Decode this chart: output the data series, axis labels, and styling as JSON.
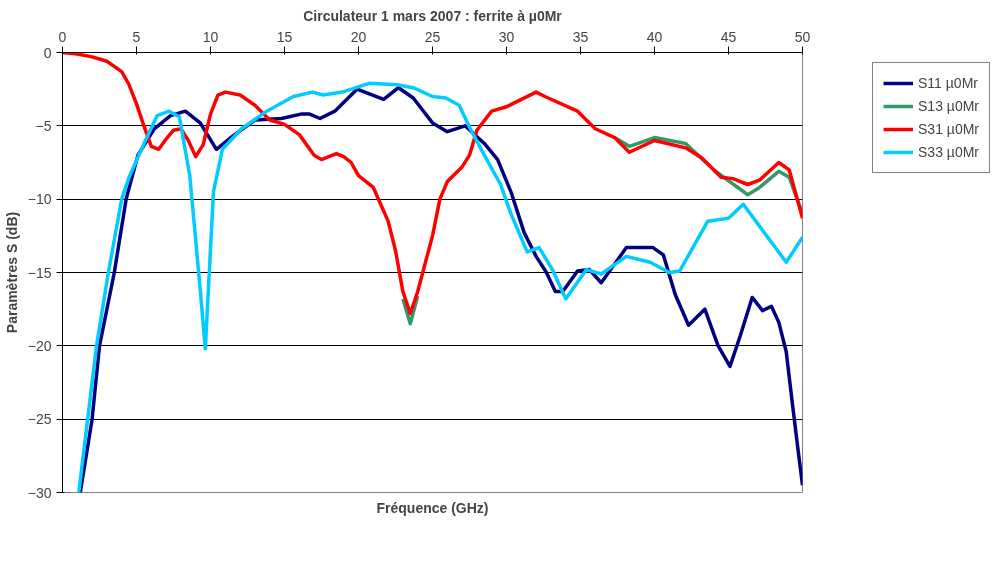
{
  "chart_data": {
    "type": "line",
    "title": "Circulateur 1 mars 2007 : ferrite à µ0Mr",
    "xlabel": "Fréquence (GHz)",
    "ylabel": "Paramètres S (dB)",
    "xlim": [
      0,
      50
    ],
    "ylim": [
      -30,
      0
    ],
    "xticks": [
      0,
      5,
      10,
      15,
      20,
      25,
      30,
      35,
      40,
      45,
      50
    ],
    "yticks": [
      -30,
      -25,
      -20,
      -15,
      -10,
      -5,
      0
    ],
    "grid": "y",
    "legend": "right",
    "marker": "none",
    "line_style": "solid",
    "series": [
      {
        "name": "S11 µ0Mr",
        "color": "#000080",
        "x": [
          1.2,
          2.0,
          2.5,
          3.5,
          4.3,
          5.1,
          6.2,
          7.3,
          8.3,
          9.3,
          10.4,
          11.5,
          13.0,
          14.8,
          16.1,
          16.7,
          17.4,
          18.4,
          19.9,
          21.7,
          22.7,
          23.7,
          25.0,
          26.0,
          27.2,
          28.5,
          29.4,
          30.3,
          31.2,
          32.0,
          32.7,
          33.3,
          33.8,
          34.8,
          35.6,
          36.4,
          38.1,
          39.9,
          40.6,
          41.4,
          42.3,
          43.4,
          44.3,
          45.1,
          45.8,
          46.6,
          47.3,
          47.9,
          48.4,
          48.9,
          49.3,
          49.7,
          50.0
        ],
        "values": [
          -30,
          -25,
          -20,
          -15,
          -10,
          -7,
          -5.2,
          -4.3,
          -4.0,
          -4.8,
          -6.6,
          -5.7,
          -4.6,
          -4.5,
          -4.2,
          -4.2,
          -4.5,
          -4.0,
          -2.5,
          -3.2,
          -2.4,
          -3.1,
          -4.8,
          -5.4,
          -5.0,
          -6.2,
          -7.3,
          -9.5,
          -12.3,
          -13.9,
          -15.0,
          -16.3,
          -16.3,
          -14.9,
          -14.8,
          -15.7,
          -13.3,
          -13.3,
          -13.8,
          -16.5,
          -18.6,
          -17.5,
          -20.0,
          -21.4,
          -19.3,
          -16.7,
          -17.6,
          -17.3,
          -18.4,
          -20.4,
          -23.8,
          -27.1,
          -29.5
        ]
      },
      {
        "name": "S13 µ0Mr",
        "color": "#339966",
        "x": [
          23,
          23.5,
          24,
          30,
          37.3,
          38.3,
          40.0,
          42.1,
          44.0,
          46.3,
          47.1,
          48.4,
          49.1,
          50
        ],
        "values": [
          -16.8,
          -18.5,
          -16.6,
          null,
          -5.8,
          -6.4,
          -5.8,
          -6.2,
          -8.0,
          -9.7,
          -9.2,
          -8.1,
          -8.5,
          -11.0
        ]
      },
      {
        "name": "S31 µ0Mr",
        "color": "#ff0000",
        "x": [
          0,
          1,
          2,
          3,
          4,
          4.5,
          5,
          5.5,
          6,
          6.5,
          7,
          7.5,
          8,
          8.5,
          9,
          9.5,
          10,
          10.5,
          11,
          12,
          13,
          14,
          15,
          16,
          17,
          17.5,
          18,
          18.5,
          19,
          19.5,
          20,
          21,
          22,
          22.5,
          23,
          23.5,
          24,
          25,
          25.5,
          26,
          27,
          27.5,
          28,
          29,
          30,
          32,
          32.7,
          34.8,
          36.0,
          37.3,
          38.3,
          40.0,
          42.1,
          43.2,
          44.5,
          45.3,
          46.3,
          47.1,
          48.4,
          49.1,
          50
        ],
        "values": [
          0,
          -0.1,
          -0.3,
          -0.6,
          -1.3,
          -2.2,
          -3.5,
          -5.0,
          -6.4,
          -6.6,
          -5.9,
          -5.3,
          -5.2,
          -6.0,
          -7.1,
          -6.3,
          -4.2,
          -2.9,
          -2.7,
          -2.9,
          -3.6,
          -4.6,
          -4.9,
          -5.6,
          -7.0,
          -7.3,
          -7.1,
          -6.9,
          -7.1,
          -7.5,
          -8.4,
          -9.2,
          -11.5,
          -13.5,
          -16.3,
          -17.8,
          -16.3,
          -12.5,
          -10.0,
          -8.8,
          -7.8,
          -7.0,
          -5.3,
          -4.0,
          -3.7,
          -2.7,
          -3.05,
          -4.0,
          -5.2,
          -5.8,
          -6.8,
          -6.0,
          -6.5,
          -7.2,
          -8.5,
          -8.6,
          -9.0,
          -8.7,
          -7.5,
          -8.0,
          -11.3
        ]
      },
      {
        "name": "S33 µ0Mr",
        "color": "#00ccff",
        "x": [
          1.1,
          2.3,
          3.1,
          4.0,
          4.5,
          5.6,
          6.4,
          7.2,
          7.9,
          8.6,
          9.3,
          9.65,
          10.2,
          10.8,
          12.1,
          13.8,
          15.6,
          16.9,
          17.6,
          18.9,
          20.7,
          22.6,
          23.7,
          25.0,
          25.9,
          26.8,
          27.6,
          28.5,
          29.6,
          30.3,
          31.4,
          32.2,
          33.1,
          34.0,
          35.4,
          36.4,
          38.1,
          39.7,
          41.0,
          41.7,
          43.6,
          45.0,
          46.0,
          47.8,
          48.9,
          50.0
        ],
        "values": [
          -30,
          -20,
          -15,
          -10,
          -8.5,
          -6.0,
          -4.3,
          -4.0,
          -4.4,
          -8.4,
          -16.1,
          -20.2,
          -9.5,
          -6.6,
          -5.2,
          -4.0,
          -3.0,
          -2.7,
          -2.9,
          -2.7,
          -2.1,
          -2.2,
          -2.4,
          -3.0,
          -3.1,
          -3.6,
          -5.3,
          -7.0,
          -9.0,
          -11.0,
          -13.6,
          -13.3,
          -14.8,
          -16.8,
          -14.8,
          -15.1,
          -13.9,
          -14.3,
          -15.0,
          -14.9,
          -11.5,
          -11.3,
          -10.35,
          -12.8,
          -14.3,
          -12.6
        ]
      }
    ]
  }
}
